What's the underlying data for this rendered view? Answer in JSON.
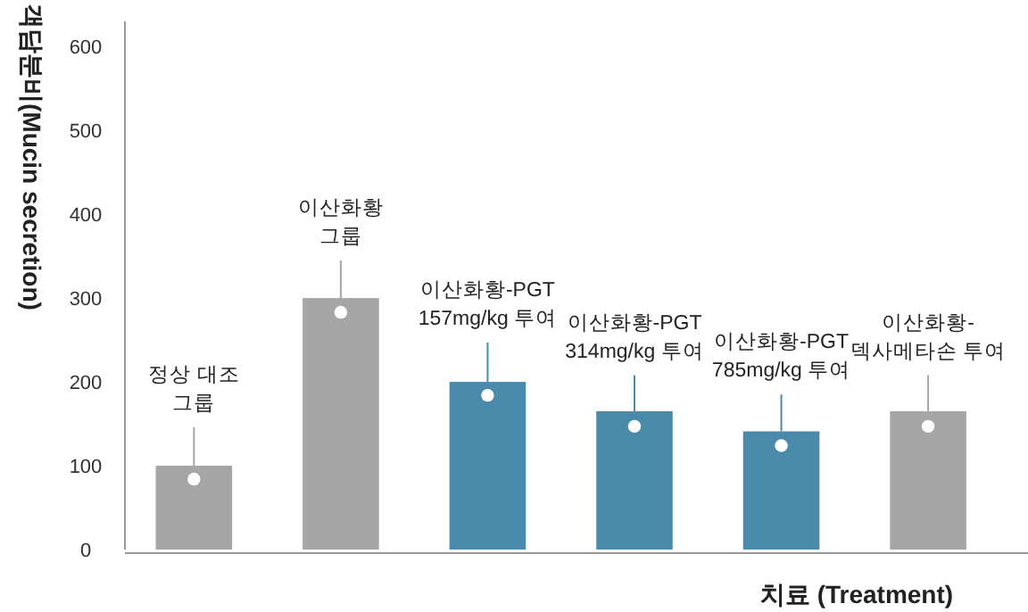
{
  "chart_data": {
    "type": "bar",
    "xlabel": "치료 (Treatment)",
    "ylabel": "객담분비(Mucin secretion)",
    "categories": [
      "정상 대조 그룹",
      "이산화황 그룹",
      "이산화황-PGT 157mg/kg 투여",
      "이산화황-PGT 314mg/kg 투여",
      "이산화황-PGT 785mg/kg 투여",
      "이산화황-덱사메타손 투여"
    ],
    "ylim": [
      0,
      630
    ],
    "yticks": [
      0,
      100,
      200,
      300,
      400,
      500,
      600
    ],
    "grid": false,
    "series": [
      {
        "type": "bar",
        "colors": [
          "#a6a6a6",
          "#a6a6a6",
          "#4a8aab",
          "#4a8aab",
          "#4a8aab",
          "#a6a6a6"
        ],
        "values": [
          100,
          300,
          200,
          165,
          141,
          165
        ],
        "errors": [
          [
            100,
            146
          ],
          [
            300,
            345
          ],
          [
            200,
            247
          ],
          [
            165,
            208
          ],
          [
            141,
            185
          ],
          [
            165,
            208
          ]
        ]
      },
      {
        "type": "scatter",
        "color": "#ffffff",
        "marker": "circle",
        "x": [
          "정상 대조 그룹",
          "이산화황 그룹",
          "이산화황-PGT 157mg/kg 투여",
          "이산화황-PGT 314mg/kg 투여",
          "이산화황-PGT 785mg/kg 투여",
          "이산화황-덱사메타손 투여"
        ],
        "values": [
          84,
          283,
          184,
          147,
          124,
          147
        ]
      }
    ]
  }
}
